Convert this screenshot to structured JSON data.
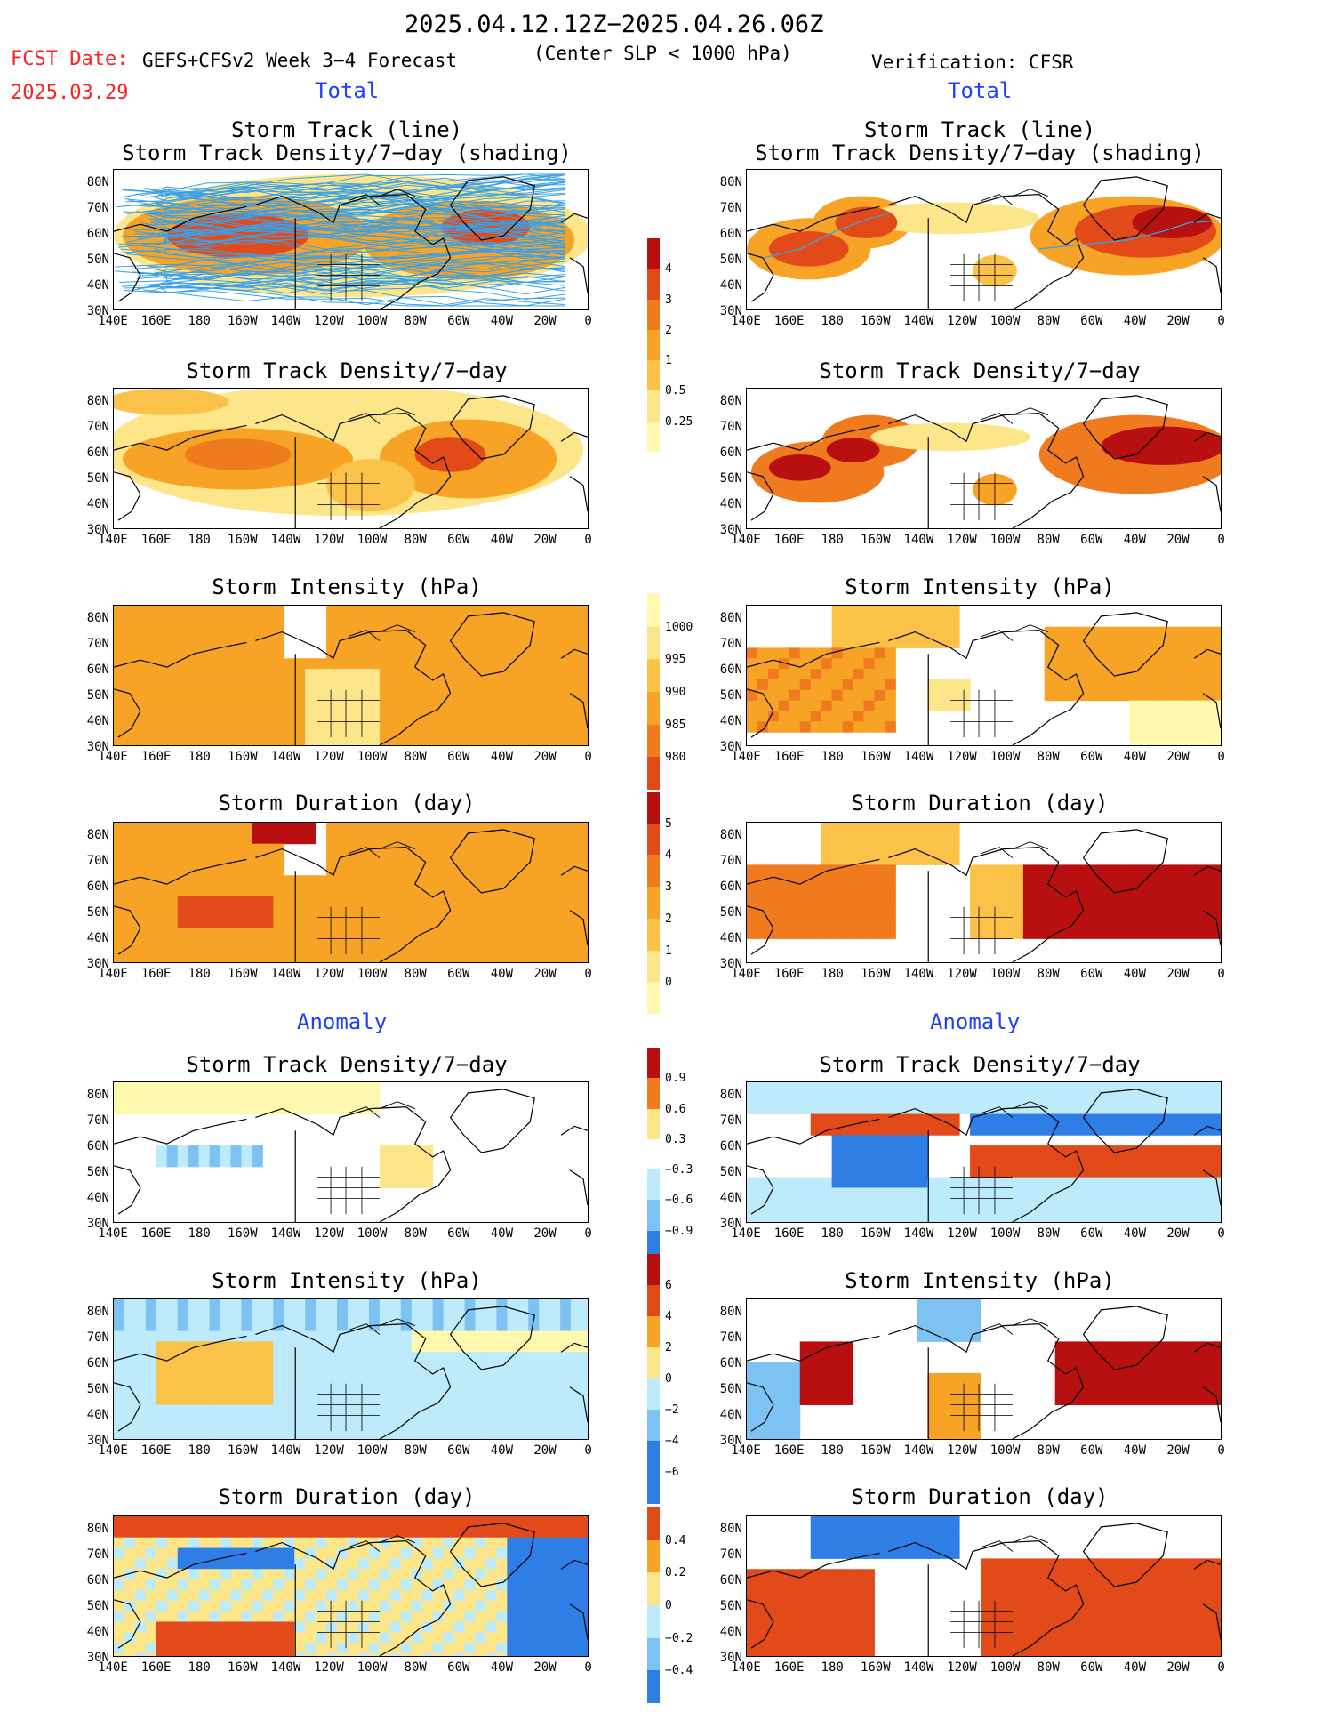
{
  "header": {
    "date_range": "2025.04.12.12Z−2025.04.26.06Z",
    "fcst_label": "FCST Date:",
    "fcst_date": "2025.03.29",
    "forecast_title": "GEFS+CFSv2 Week 3−4 Forecast",
    "center_note": "(Center SLP < 1000 hPa)",
    "verification": "Verification: CFSR"
  },
  "sections": {
    "total": "Total",
    "anomaly": "Anomaly"
  },
  "panel_titles": {
    "track_line": "Storm Track (line)",
    "track_shading": "Storm Track Density/7−day (shading)",
    "density": "Storm Track Density/7−day",
    "intensity": "Storm Intensity (hPa)",
    "duration": "Storm Duration (day)"
  },
  "lat_labels": [
    "80N",
    "70N",
    "60N",
    "50N",
    "40N",
    "30N"
  ],
  "lon_labels": [
    "140E",
    "160E",
    "180",
    "160W",
    "140W",
    "120W",
    "100W",
    "80W",
    "60W",
    "40W",
    "20W",
    "0"
  ],
  "colorbars": {
    "density_total": [
      "0.25",
      "0.5",
      "1",
      "2",
      "3",
      "4"
    ],
    "intensity_total": [
      "980",
      "985",
      "990",
      "995",
      "1000"
    ],
    "duration_total": [
      "0",
      "1",
      "2",
      "3",
      "4",
      "5"
    ],
    "density_anom": [
      "−0.9",
      "−0.6",
      "−0.3",
      "0.3",
      "0.6",
      "0.9"
    ],
    "intensity_anom": [
      "−6",
      "−4",
      "−2",
      "0",
      "2",
      "4",
      "6"
    ],
    "duration_anom": [
      "−0.4",
      "−0.2",
      "0",
      "0.2",
      "0.4"
    ]
  },
  "colors": {
    "warm": [
      "#fff9b0",
      "#fde68a",
      "#fbc24a",
      "#f7a325",
      "#f07a1e",
      "#e24a1a",
      "#b81010"
    ],
    "cool": [
      "#bdebfb",
      "#7cc2f2",
      "#2f7ee6"
    ],
    "track_line": "#3aa0e8"
  }
}
